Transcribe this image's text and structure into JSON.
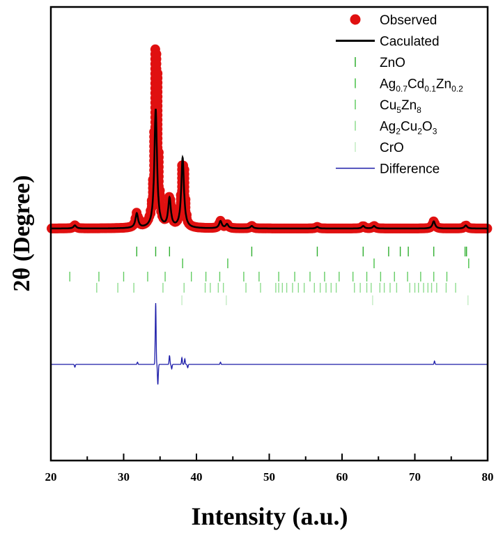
{
  "chart_data": {
    "type": "line",
    "xlabel": "Intensity (a.u.)",
    "ylabel": "2θ (Degree)",
    "xlim": [
      20,
      80
    ],
    "x_ticks": [
      20,
      30,
      40,
      50,
      60,
      70,
      80
    ],
    "x_tick_labels": [
      "20",
      "30",
      "40",
      "50",
      "60",
      "70",
      "80"
    ],
    "y_ticks_shown": false,
    "grid": false,
    "legend_position": "top-right",
    "colors": {
      "observed": "#e01010",
      "calculated": "#000000",
      "difference": "#1a1aa8",
      "ticks": [
        "#2eae2e",
        "#46c046",
        "#62cc62",
        "#8edc8e",
        "#c4ecc4"
      ]
    },
    "background_level": 0.0,
    "peaks": [
      {
        "x": 23.3,
        "height": 0.015
      },
      {
        "x": 31.8,
        "height": 0.07
      },
      {
        "x": 34.4,
        "height": 0.93
      },
      {
        "x": 36.3,
        "height": 0.14
      },
      {
        "x": 38.1,
        "height": 0.34
      },
      {
        "x": 43.3,
        "height": 0.035
      },
      {
        "x": 44.2,
        "height": 0.02
      },
      {
        "x": 47.6,
        "height": 0.012
      },
      {
        "x": 56.6,
        "height": 0.008
      },
      {
        "x": 62.9,
        "height": 0.012
      },
      {
        "x": 64.4,
        "height": 0.012
      },
      {
        "x": 72.6,
        "height": 0.035
      },
      {
        "x": 77.0,
        "height": 0.015
      }
    ],
    "calculated_peak_scale": {
      "34.4": 0.62
    },
    "difference_features": [
      {
        "x": 23.3,
        "dy": -0.025
      },
      {
        "x": 31.9,
        "dy": 0.02
      },
      {
        "x": 34.4,
        "dy": 0.55
      },
      {
        "x": 34.7,
        "dy": -0.18
      },
      {
        "x": 36.3,
        "dy": 0.08
      },
      {
        "x": 36.6,
        "dy": -0.04
      },
      {
        "x": 38.0,
        "dy": 0.06
      },
      {
        "x": 38.4,
        "dy": 0.05
      },
      {
        "x": 38.8,
        "dy": -0.03
      },
      {
        "x": 43.3,
        "dy": 0.02
      },
      {
        "x": 72.7,
        "dy": 0.03
      }
    ],
    "series": [
      {
        "name": "Observed",
        "style": "markers"
      },
      {
        "name": "Caculated",
        "style": "line"
      },
      {
        "name": "ZnO",
        "style": "ticks",
        "positions": [
          31.8,
          34.4,
          36.3,
          47.6,
          56.6,
          62.9,
          66.4,
          68.0,
          69.1,
          72.6,
          76.9,
          77.1
        ]
      },
      {
        "name": "Ag0.7Cd0.1Zn0.2",
        "style": "ticks",
        "positions": [
          38.1,
          44.3,
          64.4,
          77.4
        ]
      },
      {
        "name": "Cu5Zn8",
        "style": "ticks",
        "positions": [
          22.6,
          26.6,
          30.0,
          33.3,
          35.7,
          39.3,
          41.3,
          43.2,
          46.5,
          48.6,
          51.3,
          53.5,
          55.6,
          57.6,
          59.6,
          61.5,
          63.4,
          65.3,
          67.2,
          69.0,
          70.8,
          72.6,
          74.4
        ]
      },
      {
        "name": "Ag2Cu2O3",
        "style": "ticks",
        "positions": [
          26.3,
          29.2,
          31.4,
          35.4,
          38.3,
          41.2,
          41.9,
          43.0,
          43.7,
          46.8,
          48.8,
          50.9,
          51.3,
          51.8,
          52.4,
          53.2,
          54.0,
          54.8,
          56.2,
          57.0,
          57.8,
          58.5,
          59.2,
          61.7,
          62.5,
          63.4,
          64.0,
          65.2,
          65.8,
          66.6,
          67.5,
          69.3,
          70.0,
          70.5,
          71.2,
          71.8,
          72.3,
          73.0,
          74.3,
          75.6
        ]
      },
      {
        "name": "CrO",
        "style": "ticks",
        "positions": [
          38.0,
          44.1,
          64.2,
          77.3
        ]
      },
      {
        "name": "Difference",
        "style": "line"
      }
    ],
    "legend": [
      {
        "key": "observed",
        "text": "Observed"
      },
      {
        "key": "calculated",
        "text": "Caculated"
      },
      {
        "key": "zno",
        "base": "ZnO",
        "parts": []
      },
      {
        "key": "agcdzn",
        "parts": [
          [
            "Ag",
            ""
          ],
          [
            "0.7",
            "sub"
          ],
          [
            "Cd",
            ""
          ],
          [
            "0.1",
            "sub"
          ],
          [
            "Zn",
            ""
          ],
          [
            "0.2",
            "sub"
          ]
        ]
      },
      {
        "key": "cuzn",
        "parts": [
          [
            "Cu",
            ""
          ],
          [
            "5",
            "sub"
          ],
          [
            "Zn",
            ""
          ],
          [
            "8",
            "sub"
          ]
        ]
      },
      {
        "key": "agcuo",
        "parts": [
          [
            "Ag",
            ""
          ],
          [
            "2",
            "sub"
          ],
          [
            "Cu",
            ""
          ],
          [
            "2",
            "sub"
          ],
          [
            "O",
            ""
          ],
          [
            "3",
            "sub"
          ]
        ]
      },
      {
        "key": "cro",
        "base": "CrO",
        "parts": []
      },
      {
        "key": "difference",
        "text": "Difference"
      }
    ]
  }
}
